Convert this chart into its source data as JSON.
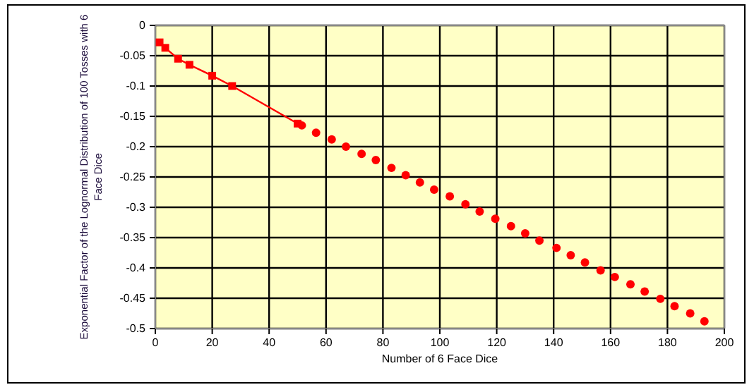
{
  "chart_data": {
    "type": "line",
    "xlabel": "Number of 6 Face Dice",
    "ylabel": "Exponential Factor of the Lognormal Distribution of 100 Tosses with 6 Face Dice",
    "xlim": [
      0,
      200
    ],
    "xticks": [
      0,
      20,
      40,
      60,
      80,
      100,
      120,
      140,
      160,
      180,
      200
    ],
    "ylim": [
      -0.5,
      0
    ],
    "yticks": [
      -0.5,
      -0.45,
      -0.4,
      -0.35,
      -0.3,
      -0.25,
      -0.2,
      -0.15,
      -0.1,
      -0.05,
      0
    ],
    "grid": true,
    "series": [
      {
        "marker": "square",
        "color": "#ff0000",
        "x": [
          1.5,
          3.5,
          8,
          12,
          20,
          27,
          50
        ],
        "values": [
          -0.028,
          -0.037,
          -0.055,
          -0.065,
          -0.083,
          -0.1,
          -0.162
        ]
      },
      {
        "type": "scatter",
        "marker": "circle",
        "color": "#ff0000",
        "x": [
          51.5,
          56.5,
          62,
          67,
          72.5,
          77.5,
          83,
          88,
          93,
          98,
          103.5,
          109,
          114,
          119.5,
          125,
          130,
          135,
          141,
          146,
          151,
          156.5,
          161.5,
          167,
          172,
          177.5,
          182.5,
          188,
          193
        ],
        "values": [
          -0.165,
          -0.177,
          -0.188,
          -0.2,
          -0.212,
          -0.222,
          -0.235,
          -0.247,
          -0.259,
          -0.271,
          -0.282,
          -0.295,
          -0.307,
          -0.319,
          -0.331,
          -0.343,
          -0.355,
          -0.367,
          -0.379,
          -0.391,
          -0.404,
          -0.415,
          -0.427,
          -0.439,
          -0.451,
          -0.463,
          -0.475,
          -0.488
        ]
      }
    ]
  }
}
